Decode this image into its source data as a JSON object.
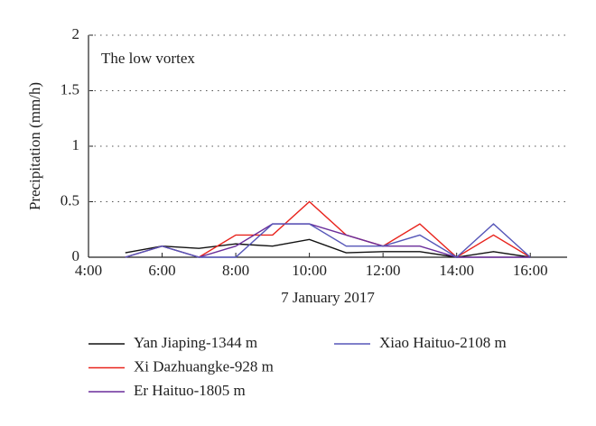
{
  "chart_data": {
    "type": "line",
    "annotation": "The low vortex",
    "xlabel": "7 January 2017",
    "ylabel": "Precipitation (mm/h)",
    "x": [
      5,
      6,
      7,
      8,
      9,
      10,
      11,
      12,
      13,
      14,
      15,
      16
    ],
    "series": [
      {
        "name": "Yan Jiaping-1344 m",
        "color": "#111111",
        "values": [
          0.04,
          0.1,
          0.08,
          0.12,
          0.1,
          0.16,
          0.04,
          0.05,
          0.05,
          0,
          0.05,
          0
        ]
      },
      {
        "name": "Xi Dazhuangke-928 m",
        "color": "#e8231c",
        "values": [
          0,
          0.1,
          0,
          0.2,
          0.2,
          0.5,
          0.2,
          0.1,
          0.3,
          0,
          0.2,
          0
        ]
      },
      {
        "name": "Er Haituo-1805 m",
        "color": "#6a2d9a",
        "values": [
          0,
          0.1,
          0,
          0.1,
          0.3,
          0.3,
          0.2,
          0.1,
          0.1,
          0,
          0,
          0
        ]
      },
      {
        "name": "Xiao Haituo-2108 m",
        "color": "#5656b8",
        "values": [
          0,
          0.1,
          0,
          0,
          0.3,
          0.3,
          0.1,
          0.1,
          0.2,
          0,
          0.3,
          0
        ]
      }
    ],
    "xlim": [
      4,
      17
    ],
    "xticks": [
      {
        "value": 4,
        "label": "4:00"
      },
      {
        "value": 6,
        "label": "6:00"
      },
      {
        "value": 8,
        "label": "8:00"
      },
      {
        "value": 10,
        "label": "10:00"
      },
      {
        "value": 12,
        "label": "12:00"
      },
      {
        "value": 14,
        "label": "14:00"
      },
      {
        "value": 16,
        "label": "16:00"
      }
    ],
    "ylim": [
      0,
      2
    ],
    "yticks": [
      0,
      0.5,
      1,
      1.5,
      2
    ],
    "grid": true
  }
}
